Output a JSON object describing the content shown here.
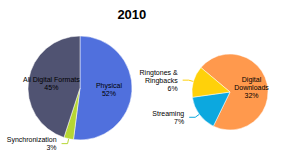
{
  "chart_data": [
    {
      "type": "pie",
      "title": "2010",
      "categories": [
        "Physical",
        "Synchronization",
        "All Digital Formats"
      ],
      "values": [
        52,
        3,
        45
      ],
      "value_labels": [
        "52%",
        "3%",
        "45%"
      ],
      "data_labels": true
    },
    {
      "type": "pie",
      "categories": [
        "Digital\nDownloads",
        "Streaming",
        "Ringtones &\nRingbacks"
      ],
      "values": [
        32,
        7,
        6
      ],
      "value_labels": [
        "32%",
        "7%",
        "6%"
      ],
      "data_labels": true
    }
  ]
}
